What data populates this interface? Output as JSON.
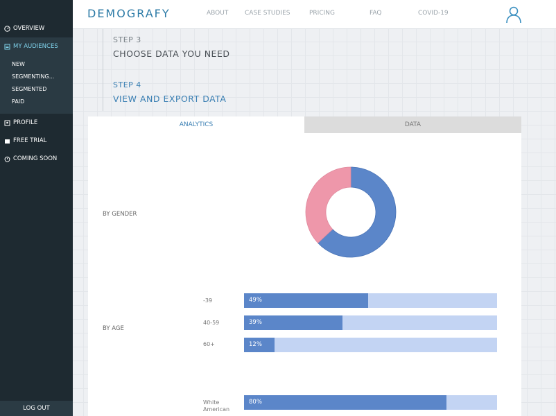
{
  "brand": "DEMOGRAFY",
  "nav": [
    "ABOUT",
    "CASE STUDIES",
    "PRICING",
    "FAQ",
    "COVID-19"
  ],
  "sidebar": {
    "items": [
      {
        "label": "OVERVIEW"
      },
      {
        "label": "MY AUDIENCES"
      },
      {
        "label": "PROFILE"
      },
      {
        "label": "FREE TRIAL"
      },
      {
        "label": "COMING SOON"
      }
    ],
    "subitems": [
      "NEW",
      "SEGMENTING...",
      "SEGMENTED",
      "PAID"
    ],
    "logout": "LOG OUT"
  },
  "steps": [
    {
      "label": "STEP 3",
      "title": "CHOOSE DATA YOU NEED"
    },
    {
      "label": "STEP 4",
      "title": "VIEW AND EXPORT DATA"
    }
  ],
  "tabs": [
    "ANALYTICS",
    "DATA"
  ],
  "sections": {
    "gender": "BY GENDER",
    "age": "BY AGE"
  },
  "colors": {
    "male": "#5b86c9",
    "female": "#ee97aa",
    "track": "#c3d4f3",
    "accent": "#2b7aa6"
  },
  "chart_data": [
    {
      "type": "pie",
      "values": [
        63,
        37
      ]
    },
    {
      "type": "bar",
      "categories": [
        "-39",
        "40-59",
        "60+"
      ],
      "values": [
        49,
        39,
        12
      ],
      "labels": [
        "49%",
        "39%",
        "12%"
      ]
    },
    {
      "type": "bar",
      "categories": [
        "White American"
      ],
      "values": [
        80
      ],
      "labels": [
        "80%"
      ]
    }
  ]
}
